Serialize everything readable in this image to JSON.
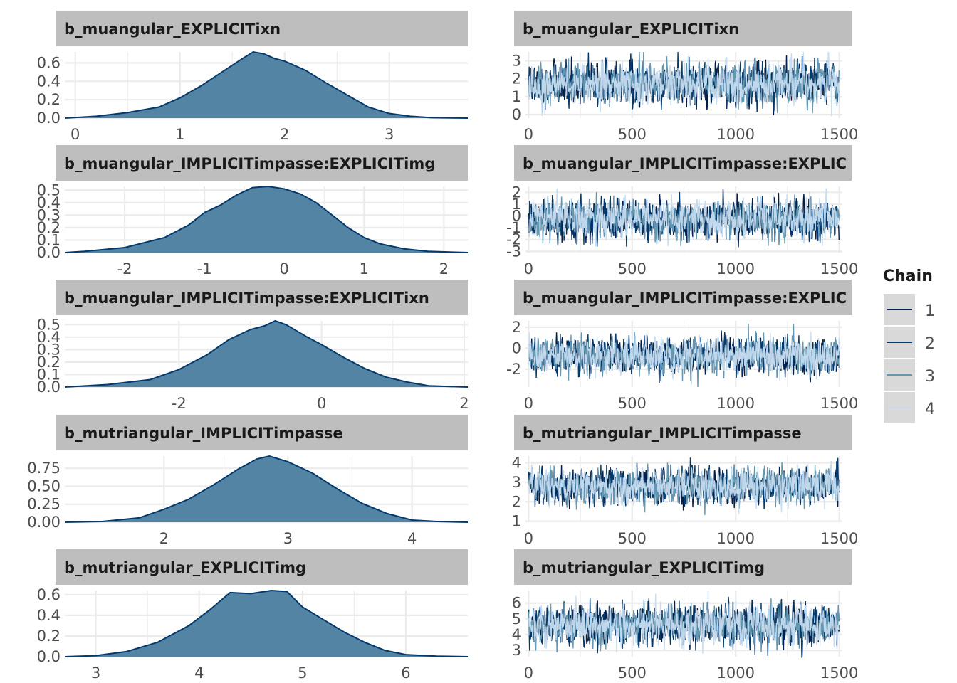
{
  "chart_data": [
    {
      "type": "area",
      "panel": "density",
      "title": "b_muangular_EXPLICITixn",
      "xlim": [
        -0.1,
        3.75
      ],
      "ylim": [
        0,
        0.72
      ],
      "x_ticks": [
        0,
        1,
        2,
        3
      ],
      "y_ticks": [
        0.0,
        0.2,
        0.4,
        0.6
      ],
      "y_tick_labels": [
        "0.0",
        "0.2",
        "0.4",
        "0.6"
      ],
      "x": [
        -0.1,
        0.2,
        0.5,
        0.8,
        1.0,
        1.2,
        1.4,
        1.6,
        1.7,
        1.8,
        1.9,
        2.0,
        2.2,
        2.4,
        2.6,
        2.8,
        3.0,
        3.2,
        3.4,
        3.75
      ],
      "y": [
        0.0,
        0.02,
        0.06,
        0.12,
        0.22,
        0.35,
        0.5,
        0.65,
        0.72,
        0.7,
        0.65,
        0.62,
        0.52,
        0.38,
        0.25,
        0.12,
        0.05,
        0.02,
        0.005,
        0.0
      ]
    },
    {
      "type": "area",
      "panel": "density",
      "title": "b_muangular_IMPLICITimpasse:EXPLICITimg",
      "xlim": [
        -2.75,
        2.3
      ],
      "ylim": [
        0,
        0.53
      ],
      "x_ticks": [
        -2,
        -1,
        0,
        1,
        2
      ],
      "y_ticks": [
        0.0,
        0.1,
        0.2,
        0.3,
        0.4,
        0.5
      ],
      "y_tick_labels": [
        "0.0",
        "0.1",
        "0.2",
        "0.3",
        "0.4",
        "0.5"
      ],
      "x": [
        -2.75,
        -2.5,
        -2.0,
        -1.5,
        -1.2,
        -1.0,
        -0.8,
        -0.6,
        -0.4,
        -0.2,
        0.0,
        0.2,
        0.4,
        0.6,
        0.8,
        1.0,
        1.2,
        1.5,
        1.8,
        2.3
      ],
      "y": [
        0.0,
        0.01,
        0.04,
        0.12,
        0.22,
        0.32,
        0.38,
        0.46,
        0.52,
        0.53,
        0.51,
        0.47,
        0.4,
        0.3,
        0.2,
        0.12,
        0.07,
        0.03,
        0.01,
        0.0
      ]
    },
    {
      "type": "area",
      "panel": "density",
      "title": "b_muangular_IMPLICITimpasse:EXPLICITixn",
      "xlim": [
        -3.6,
        2.05
      ],
      "ylim": [
        0,
        0.53
      ],
      "x_ticks": [
        -2,
        0,
        2
      ],
      "y_ticks": [
        0.0,
        0.1,
        0.2,
        0.3,
        0.4,
        0.5
      ],
      "y_tick_labels": [
        "0.0",
        "0.1",
        "0.2",
        "0.3",
        "0.4",
        "0.5"
      ],
      "x": [
        -3.6,
        -3.0,
        -2.4,
        -2.0,
        -1.6,
        -1.3,
        -1.0,
        -0.8,
        -0.65,
        -0.5,
        -0.2,
        0.0,
        0.3,
        0.6,
        0.9,
        1.2,
        1.5,
        2.05
      ],
      "y": [
        0.0,
        0.02,
        0.06,
        0.14,
        0.26,
        0.38,
        0.46,
        0.49,
        0.53,
        0.5,
        0.4,
        0.34,
        0.24,
        0.15,
        0.08,
        0.04,
        0.01,
        0.0
      ]
    },
    {
      "type": "area",
      "panel": "density",
      "title": "b_mutriangular_IMPLICITimpasse",
      "xlim": [
        1.2,
        4.45
      ],
      "ylim": [
        0,
        0.92
      ],
      "x_ticks": [
        2,
        3,
        4
      ],
      "y_ticks": [
        0.0,
        0.25,
        0.5,
        0.75
      ],
      "y_tick_labels": [
        "0.00",
        "0.25",
        "0.50",
        "0.75"
      ],
      "x": [
        1.2,
        1.5,
        1.8,
        2.0,
        2.2,
        2.4,
        2.6,
        2.75,
        2.85,
        3.0,
        3.2,
        3.4,
        3.6,
        3.8,
        4.0,
        4.2,
        4.45
      ],
      "y": [
        0.0,
        0.01,
        0.06,
        0.18,
        0.32,
        0.52,
        0.74,
        0.88,
        0.92,
        0.84,
        0.68,
        0.46,
        0.26,
        0.12,
        0.03,
        0.01,
        0.0
      ]
    },
    {
      "type": "area",
      "panel": "density",
      "title": "b_mutriangular_EXPLICITimg",
      "xlim": [
        2.7,
        6.6
      ],
      "ylim": [
        0,
        0.64
      ],
      "x_ticks": [
        3,
        4,
        5,
        6
      ],
      "y_ticks": [
        0.0,
        0.2,
        0.4,
        0.6
      ],
      "y_tick_labels": [
        "0.0",
        "0.2",
        "0.4",
        "0.6"
      ],
      "x": [
        2.7,
        3.0,
        3.3,
        3.6,
        3.9,
        4.1,
        4.3,
        4.5,
        4.7,
        4.85,
        5.0,
        5.2,
        5.4,
        5.6,
        5.8,
        6.0,
        6.3,
        6.6
      ],
      "y": [
        0.0,
        0.01,
        0.05,
        0.14,
        0.3,
        0.45,
        0.62,
        0.61,
        0.64,
        0.63,
        0.48,
        0.36,
        0.24,
        0.14,
        0.06,
        0.02,
        0.005,
        0.0
      ]
    },
    {
      "type": "line",
      "panel": "trace",
      "title": "b_muangular_EXPLICITixn",
      "xlim": [
        -15,
        1515
      ],
      "ylim": [
        -0.2,
        3.5
      ],
      "x_ticks": [
        0,
        500,
        1000,
        1500
      ],
      "y_ticks": [
        0,
        1,
        2,
        3
      ],
      "y_tick_labels": [
        "0",
        "1",
        "2",
        "3"
      ],
      "iterations": 1500,
      "series": [
        {
          "name": "1",
          "mean": 1.75,
          "sd": 0.55,
          "seed": 11
        },
        {
          "name": "2",
          "mean": 1.75,
          "sd": 0.55,
          "seed": 12
        },
        {
          "name": "3",
          "mean": 1.75,
          "sd": 0.55,
          "seed": 13
        },
        {
          "name": "4",
          "mean": 1.75,
          "sd": 0.55,
          "seed": 14
        }
      ]
    },
    {
      "type": "line",
      "panel": "trace",
      "title": "b_muangular_IMPLICITimpasse:EXPLIC",
      "xlim": [
        -15,
        1515
      ],
      "ylim": [
        -3.1,
        2.5
      ],
      "x_ticks": [
        0,
        500,
        1000,
        1500
      ],
      "y_ticks": [
        -3,
        -2,
        -1,
        0,
        1,
        2
      ],
      "y_tick_labels": [
        "-3",
        "-2",
        "-1",
        "0",
        "1",
        "2"
      ],
      "iterations": 1500,
      "series": [
        {
          "name": "1",
          "mean": -0.3,
          "sd": 0.75,
          "seed": 21
        },
        {
          "name": "2",
          "mean": -0.3,
          "sd": 0.75,
          "seed": 22
        },
        {
          "name": "3",
          "mean": -0.3,
          "sd": 0.75,
          "seed": 23
        },
        {
          "name": "4",
          "mean": -0.3,
          "sd": 0.75,
          "seed": 24
        }
      ]
    },
    {
      "type": "line",
      "panel": "trace",
      "title": "b_muangular_IMPLICITimpasse:EXPLIC",
      "xlim": [
        -15,
        1515
      ],
      "ylim": [
        -3.7,
        2.6
      ],
      "x_ticks": [
        0,
        500,
        1000,
        1500
      ],
      "y_ticks": [
        -2,
        0,
        2
      ],
      "y_tick_labels": [
        "-2",
        "0",
        "2"
      ],
      "iterations": 1500,
      "series": [
        {
          "name": "1",
          "mean": -0.75,
          "sd": 0.8,
          "seed": 31
        },
        {
          "name": "2",
          "mean": -0.75,
          "sd": 0.8,
          "seed": 32
        },
        {
          "name": "3",
          "mean": -0.75,
          "sd": 0.8,
          "seed": 33
        },
        {
          "name": "4",
          "mean": -0.75,
          "sd": 0.8,
          "seed": 34
        }
      ]
    },
    {
      "type": "line",
      "panel": "trace",
      "title": "b_mutriangular_IMPLICITimpasse",
      "xlim": [
        -15,
        1515
      ],
      "ylim": [
        0.95,
        4.35
      ],
      "x_ticks": [
        0,
        500,
        1000,
        1500
      ],
      "y_ticks": [
        1,
        2,
        3,
        4
      ],
      "y_tick_labels": [
        "1",
        "2",
        "3",
        "4"
      ],
      "iterations": 1500,
      "series": [
        {
          "name": "1",
          "mean": 2.8,
          "sd": 0.45,
          "seed": 41
        },
        {
          "name": "2",
          "mean": 2.8,
          "sd": 0.45,
          "seed": 42
        },
        {
          "name": "3",
          "mean": 2.8,
          "sd": 0.45,
          "seed": 43
        },
        {
          "name": "4",
          "mean": 2.8,
          "sd": 0.45,
          "seed": 44
        }
      ]
    },
    {
      "type": "line",
      "panel": "trace",
      "title": "b_mutriangular_EXPLICITimg",
      "xlim": [
        -15,
        1515
      ],
      "ylim": [
        2.6,
        6.8
      ],
      "x_ticks": [
        0,
        500,
        1000,
        1500
      ],
      "y_ticks": [
        3,
        4,
        5,
        6
      ],
      "y_tick_labels": [
        "3",
        "4",
        "5",
        "6"
      ],
      "iterations": 1500,
      "series": [
        {
          "name": "1",
          "mean": 4.6,
          "sd": 0.6,
          "seed": 51
        },
        {
          "name": "2",
          "mean": 4.6,
          "sd": 0.6,
          "seed": 52
        },
        {
          "name": "3",
          "mean": 4.6,
          "sd": 0.6,
          "seed": 53
        },
        {
          "name": "4",
          "mean": 4.6,
          "sd": 0.6,
          "seed": 54
        }
      ]
    }
  ],
  "legend": {
    "title": "Chain",
    "items": [
      "1",
      "2",
      "3",
      "4"
    ]
  },
  "colors": {
    "chains": [
      "#011f4b",
      "#03396c",
      "#6497b1",
      "#c6dbef"
    ],
    "density_fill": "#5384a3",
    "density_line": "#03396c",
    "strip_bg": "#bebebe",
    "grid": "#ebebeb",
    "legend_key_bg": "#d9d9d9"
  }
}
